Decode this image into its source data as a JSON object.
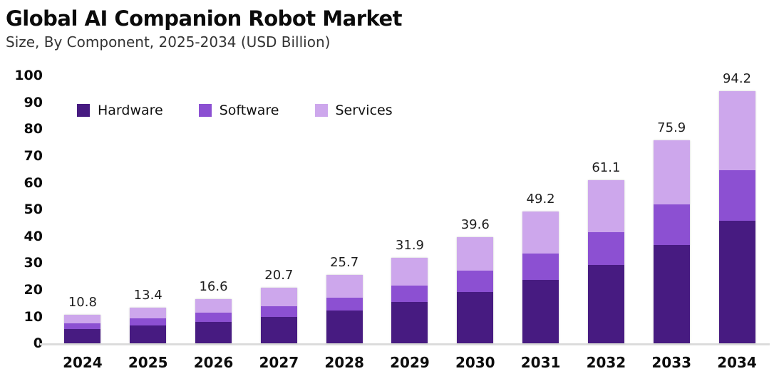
{
  "header": {
    "title": "Global AI Companion Robot Market",
    "subtitle": "Size, By Component, 2025-2034 (USD Billion)"
  },
  "chart_data": {
    "type": "bar",
    "stacked": true,
    "title": "Global AI Companion Robot Market",
    "subtitle": "Size, By Component, 2025-2034 (USD Billion)",
    "xlabel": "",
    "ylabel": "",
    "unit": "USD Billion",
    "categories": [
      "2024",
      "2025",
      "2026",
      "2027",
      "2028",
      "2029",
      "2030",
      "2031",
      "2032",
      "2033",
      "2034"
    ],
    "series": [
      {
        "name": "Hardware",
        "color": "#471b81",
        "values": [
          5.5,
          6.7,
          8.0,
          9.9,
          12.3,
          15.4,
          19.3,
          23.7,
          29.4,
          36.7,
          45.7
        ]
      },
      {
        "name": "Software",
        "color": "#8c50d2",
        "values": [
          2.1,
          2.6,
          3.5,
          4.1,
          4.9,
          6.2,
          7.8,
          9.9,
          12.2,
          15.2,
          18.9
        ]
      },
      {
        "name": "Services",
        "color": "#cda7ec",
        "values": [
          3.2,
          4.1,
          5.1,
          6.7,
          8.5,
          10.3,
          12.5,
          15.6,
          19.5,
          24.0,
          29.6
        ]
      }
    ],
    "totals": [
      10.8,
      13.4,
      16.6,
      20.7,
      25.7,
      31.9,
      39.6,
      49.2,
      61.1,
      75.9,
      94.2
    ],
    "total_labels": [
      "10.8",
      "13.4",
      "16.6",
      "20.7",
      "25.7",
      "31.9",
      "39.6",
      "49.2",
      "61.1",
      "75.9",
      "94.2"
    ],
    "ylim": [
      0,
      100
    ],
    "yticks": [
      100,
      90,
      80,
      70,
      60,
      50,
      40,
      30,
      20,
      10,
      0
    ],
    "grid": false,
    "legend_position": "top-left-inside"
  },
  "colors": {
    "axis_line": "#dcdcdc",
    "title_text": "#0b0b0b",
    "subtitle_text": "#343434",
    "tick_text": "#0c0c0c",
    "value_label_text": "#1e1e1e"
  }
}
